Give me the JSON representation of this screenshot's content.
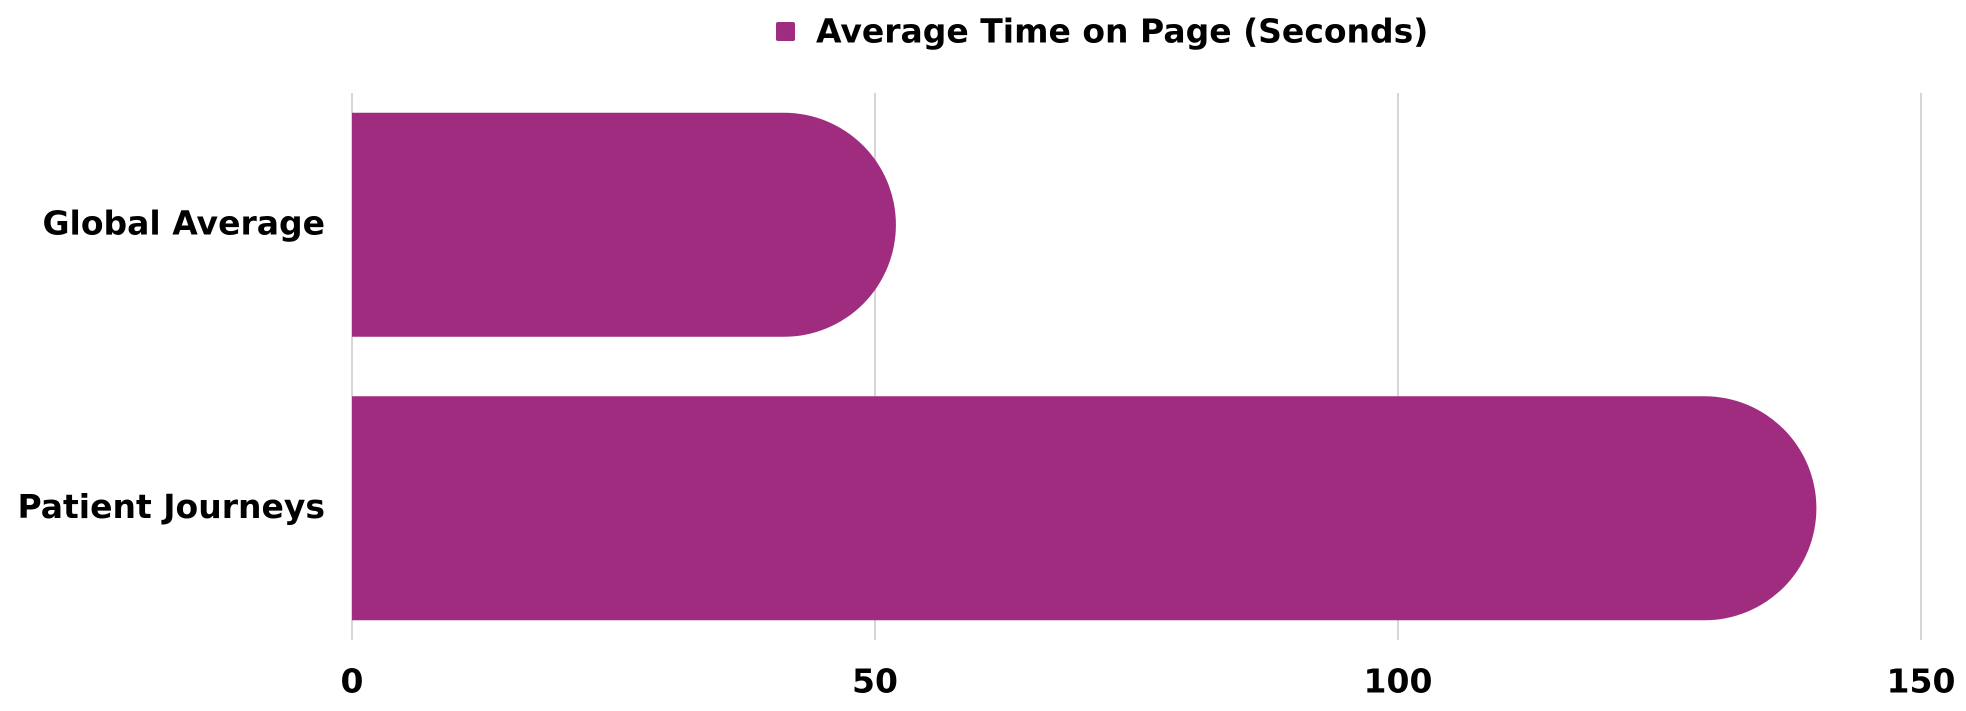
{
  "chart_data": {
    "type": "barh",
    "legend": "Average Time on Page (Seconds)",
    "color": "#a02c7f",
    "categories": [
      "Global Average",
      "Patient Journeys"
    ],
    "series": [
      {
        "name": "Average Time on Page (Seconds)",
        "color": "#a02c7f",
        "values": [
          52,
          140
        ]
      }
    ],
    "xlim": [
      0,
      150
    ],
    "xticks": [
      0,
      50,
      100,
      150
    ],
    "grid": true,
    "legend_position": "top"
  }
}
